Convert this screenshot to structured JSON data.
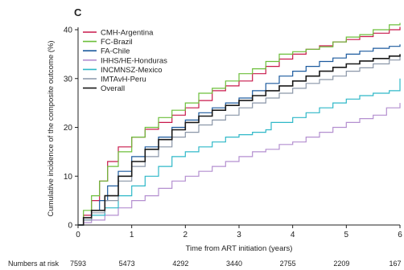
{
  "chart_data": {
    "type": "line",
    "panel_label": "C",
    "xlabel": "Time from ART initiation (years)",
    "ylabel": "Cumulative incidence of the composite outcome (%)",
    "xlim": [
      0,
      6
    ],
    "ylim": [
      0,
      40
    ],
    "xticks": [
      "0",
      "1",
      "2",
      "3",
      "4",
      "5",
      "6"
    ],
    "yticks": [
      "0",
      "10",
      "20",
      "30",
      "40"
    ],
    "legend_position": "top-left",
    "series": [
      {
        "name": "CMH-Argentina",
        "color": "#c8194b",
        "points": [
          [
            0,
            0
          ],
          [
            0.1,
            2
          ],
          [
            0.25,
            5
          ],
          [
            0.4,
            9
          ],
          [
            0.55,
            13
          ],
          [
            0.75,
            16
          ],
          [
            1,
            18
          ],
          [
            1.25,
            19.6
          ],
          [
            1.5,
            21
          ],
          [
            1.75,
            22.5
          ],
          [
            2,
            24
          ],
          [
            2.25,
            25.5
          ],
          [
            2.5,
            27.5
          ],
          [
            2.75,
            28.5
          ],
          [
            3,
            29.5
          ],
          [
            3.25,
            31
          ],
          [
            3.5,
            32.5
          ],
          [
            3.75,
            34
          ],
          [
            4,
            35
          ],
          [
            4.25,
            36
          ],
          [
            4.5,
            36.7
          ],
          [
            4.75,
            37.5
          ],
          [
            5,
            38
          ],
          [
            5.25,
            38.6
          ],
          [
            5.5,
            39.3
          ],
          [
            5.8,
            40
          ],
          [
            6,
            40.6
          ]
        ]
      },
      {
        "name": "FC-Brazil",
        "color": "#6cbf3a",
        "points": [
          [
            0,
            0
          ],
          [
            0.1,
            3
          ],
          [
            0.25,
            6
          ],
          [
            0.4,
            9
          ],
          [
            0.55,
            12
          ],
          [
            0.75,
            15
          ],
          [
            1,
            18
          ],
          [
            1.25,
            20
          ],
          [
            1.5,
            22
          ],
          [
            1.75,
            23.5
          ],
          [
            2,
            25
          ],
          [
            2.25,
            27
          ],
          [
            2.5,
            28
          ],
          [
            2.75,
            29.5
          ],
          [
            3,
            31
          ],
          [
            3.25,
            32
          ],
          [
            3.5,
            33.5
          ],
          [
            3.75,
            35
          ],
          [
            4,
            35.5
          ],
          [
            4.25,
            36
          ],
          [
            4.5,
            36.5
          ],
          [
            4.75,
            37.5
          ],
          [
            5,
            38.5
          ],
          [
            5.25,
            39
          ],
          [
            5.5,
            40
          ],
          [
            5.8,
            41
          ],
          [
            6,
            41.4
          ]
        ]
      },
      {
        "name": "FA-Chile",
        "color": "#1c5a9e",
        "points": [
          [
            0,
            0
          ],
          [
            0.1,
            1
          ],
          [
            0.25,
            3
          ],
          [
            0.4,
            5
          ],
          [
            0.55,
            8
          ],
          [
            0.75,
            11
          ],
          [
            1,
            14
          ],
          [
            1.25,
            16
          ],
          [
            1.5,
            18
          ],
          [
            1.75,
            20
          ],
          [
            2,
            21.5
          ],
          [
            2.25,
            23
          ],
          [
            2.5,
            24
          ],
          [
            2.75,
            25
          ],
          [
            3,
            26
          ],
          [
            3.25,
            27.5
          ],
          [
            3.5,
            29
          ],
          [
            3.75,
            30.5
          ],
          [
            4,
            31.5
          ],
          [
            4.25,
            32.5
          ],
          [
            4.5,
            33.5
          ],
          [
            4.75,
            34.2
          ],
          [
            5,
            35
          ],
          [
            5.25,
            35.6
          ],
          [
            5.5,
            36.2
          ],
          [
            5.8,
            36.6
          ],
          [
            6,
            37
          ]
        ]
      },
      {
        "name": "IHHS/HE-Honduras",
        "color": "#b48fd0",
        "points": [
          [
            0,
            0
          ],
          [
            0.1,
            0.5
          ],
          [
            0.25,
            1
          ],
          [
            0.5,
            2
          ],
          [
            0.75,
            3.5
          ],
          [
            1,
            5
          ],
          [
            1.25,
            6
          ],
          [
            1.5,
            7.5
          ],
          [
            1.75,
            9
          ],
          [
            2,
            10
          ],
          [
            2.25,
            11
          ],
          [
            2.5,
            12
          ],
          [
            2.75,
            13
          ],
          [
            3,
            14
          ],
          [
            3.25,
            15
          ],
          [
            3.5,
            15.5
          ],
          [
            3.75,
            16.5
          ],
          [
            4,
            17
          ],
          [
            4.25,
            18
          ],
          [
            4.5,
            19
          ],
          [
            4.75,
            20
          ],
          [
            5,
            21
          ],
          [
            5.25,
            21.8
          ],
          [
            5.5,
            22.5
          ],
          [
            5.75,
            24
          ],
          [
            6,
            25
          ]
        ]
      },
      {
        "name": "INCMNSZ-Mexico",
        "color": "#2fb8c8",
        "points": [
          [
            0,
            0
          ],
          [
            0.1,
            1
          ],
          [
            0.25,
            2
          ],
          [
            0.5,
            3.5
          ],
          [
            0.75,
            6
          ],
          [
            1,
            8
          ],
          [
            1.25,
            10
          ],
          [
            1.5,
            12
          ],
          [
            1.75,
            14
          ],
          [
            2,
            15
          ],
          [
            2.25,
            16
          ],
          [
            2.5,
            17
          ],
          [
            2.75,
            18
          ],
          [
            3,
            18.5
          ],
          [
            3.25,
            19
          ],
          [
            3.5,
            19.5
          ],
          [
            3.6,
            21
          ],
          [
            4,
            22
          ],
          [
            4.25,
            23
          ],
          [
            4.5,
            24
          ],
          [
            4.75,
            25
          ],
          [
            5,
            25.8
          ],
          [
            5.25,
            26.5
          ],
          [
            5.5,
            27
          ],
          [
            5.8,
            27.5
          ],
          [
            6,
            30
          ]
        ]
      },
      {
        "name": "IMTAvH-Peru",
        "color": "#8a96a8",
        "points": [
          [
            0,
            0
          ],
          [
            0.1,
            1
          ],
          [
            0.25,
            2.5
          ],
          [
            0.5,
            5
          ],
          [
            0.75,
            9
          ],
          [
            1,
            12
          ],
          [
            1.25,
            14
          ],
          [
            1.5,
            16
          ],
          [
            1.75,
            18
          ],
          [
            2,
            19
          ],
          [
            2.25,
            20.5
          ],
          [
            2.5,
            21.5
          ],
          [
            2.75,
            22.5
          ],
          [
            3,
            24
          ],
          [
            3.25,
            25
          ],
          [
            3.5,
            26
          ],
          [
            3.75,
            27
          ],
          [
            4,
            28
          ],
          [
            4.25,
            29
          ],
          [
            4.5,
            29.8
          ],
          [
            4.75,
            30.5
          ],
          [
            5,
            31.5
          ],
          [
            5.25,
            32.2
          ],
          [
            5.5,
            33
          ],
          [
            5.8,
            33.8
          ],
          [
            6,
            34.5
          ]
        ]
      },
      {
        "name": "Overall",
        "color": "#1a1a1a",
        "points": [
          [
            0,
            0
          ],
          [
            0.1,
            1.5
          ],
          [
            0.25,
            3
          ],
          [
            0.5,
            6
          ],
          [
            0.75,
            10
          ],
          [
            1,
            13
          ],
          [
            1.25,
            15.5
          ],
          [
            1.5,
            17.5
          ],
          [
            1.75,
            19.5
          ],
          [
            2,
            21
          ],
          [
            2.25,
            22.3
          ],
          [
            2.5,
            23.5
          ],
          [
            2.75,
            24.5
          ],
          [
            3,
            25.5
          ],
          [
            3.25,
            26.5
          ],
          [
            3.5,
            27.5
          ],
          [
            3.75,
            28.5
          ],
          [
            4,
            29.5
          ],
          [
            4.25,
            30.5
          ],
          [
            4.5,
            31.5
          ],
          [
            4.75,
            32.3
          ],
          [
            5,
            33
          ],
          [
            5.25,
            33.6
          ],
          [
            5.5,
            34.1
          ],
          [
            5.8,
            34.6
          ],
          [
            6,
            35
          ]
        ]
      }
    ],
    "risk_table": {
      "label": "Numbers at risk",
      "values": [
        "7593",
        "5473",
        "4292",
        "3440",
        "2755",
        "2209",
        "167"
      ]
    }
  }
}
